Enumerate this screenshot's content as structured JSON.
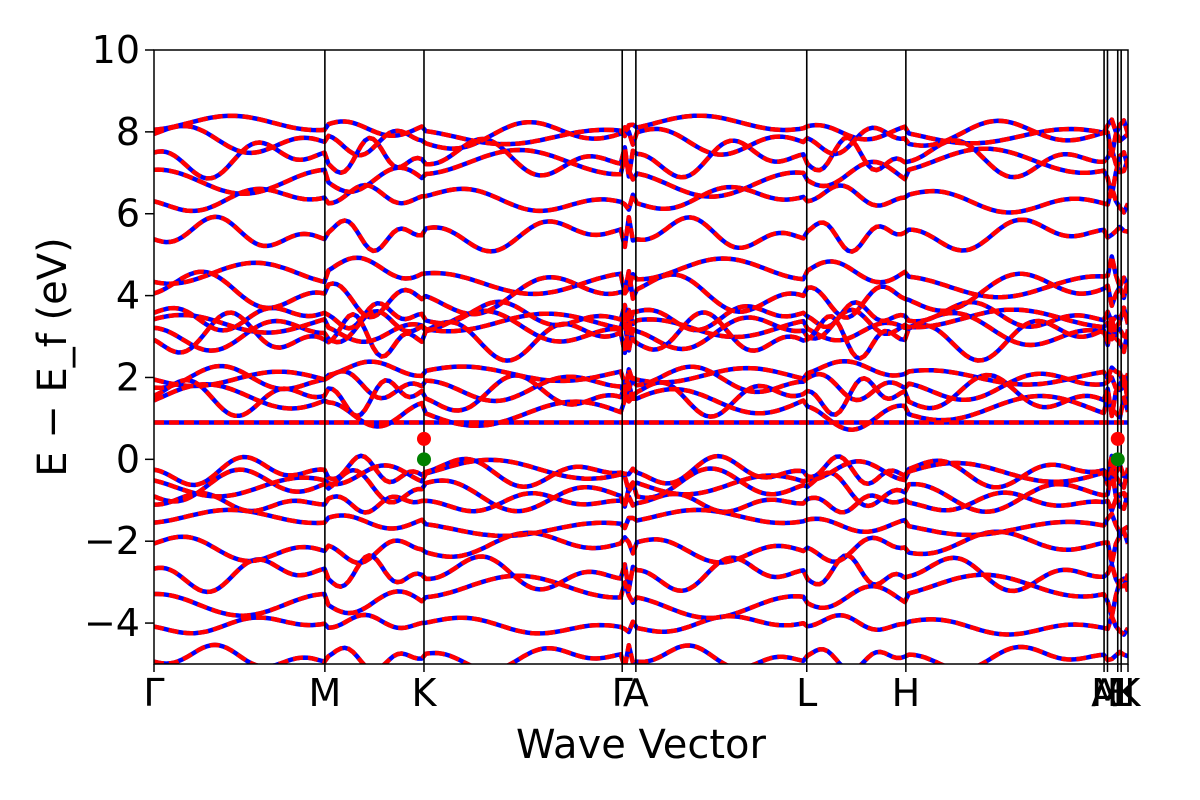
{
  "chart_data": {
    "type": "line",
    "title": "",
    "xlabel": "Wave Vector",
    "ylabel": "E − E_f (eV)",
    "ylim": [
      -5,
      10
    ],
    "xlim": [
      0,
      5.7
    ],
    "y_ticks": [
      -4,
      -2,
      0,
      2,
      4,
      6,
      8,
      10
    ],
    "k_points": [
      {
        "label": "Γ",
        "x": 0.0
      },
      {
        "label": "M",
        "x": 1.0
      },
      {
        "label": "K",
        "x": 1.58
      },
      {
        "label": "Γ",
        "x": 2.74
      },
      {
        "label": "A",
        "x": 2.82
      },
      {
        "label": "L",
        "x": 3.82
      },
      {
        "label": "H",
        "x": 4.4
      },
      {
        "label": "A",
        "x": 5.56
      },
      {
        "label": "M",
        "x": 5.58
      },
      {
        "label": "L",
        "x": 5.64
      },
      {
        "label": "H",
        "x": 5.66
      },
      {
        "label": "K",
        "x": 5.7
      }
    ],
    "series": [
      {
        "name": "",
        "color": "#0000ff",
        "style": "solid",
        "values": [
          8.05,
          7.85,
          7.35,
          7.0,
          6.35,
          5.5,
          4.45,
          4.05,
          3.5,
          3.3,
          3.15,
          3.0,
          2.05,
          1.85,
          1.55,
          1.3,
          0.9,
          -0.3,
          -0.45,
          -0.75,
          -1.05,
          -1.55,
          -2.15,
          -2.8,
          -3.35,
          -4.05,
          -4.85
        ]
      },
      {
        "name": "",
        "color": "#ff0000",
        "style": "dashed",
        "values": [
          8.05,
          7.85,
          7.35,
          7.0,
          6.35,
          5.5,
          4.45,
          4.05,
          3.5,
          3.3,
          3.15,
          3.0,
          2.05,
          1.85,
          1.55,
          1.3,
          0.9,
          -0.3,
          -0.45,
          -0.75,
          -1.05,
          -1.55,
          -2.15,
          -2.8,
          -3.35,
          -4.05,
          -4.85
        ]
      }
    ],
    "markers": [
      {
        "x": 1.58,
        "y": 0.5,
        "color": "#ff0000"
      },
      {
        "x": 1.58,
        "y": 0.0,
        "color": "#008000"
      },
      {
        "x": 5.64,
        "y": 0.5,
        "color": "#ff0000"
      },
      {
        "x": 5.64,
        "y": 0.0,
        "color": "#008000"
      }
    ],
    "grid": false,
    "legend": "none"
  }
}
